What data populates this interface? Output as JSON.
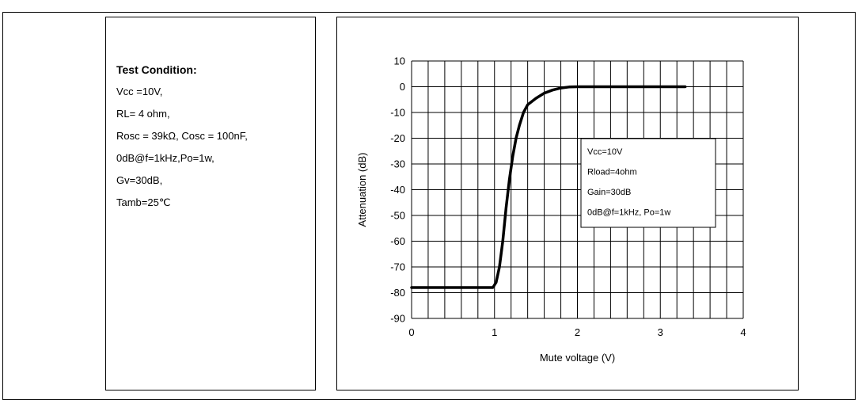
{
  "caption": "",
  "conditions": {
    "title": "Test Condition:",
    "lines": [
      "Vcc =10V,",
      "RL= 4 ohm,",
      "Rosc = 39kΩ, Cosc = 100nF,",
      "0dB@f=1kHz,Po=1w,",
      "Gv=30dB,",
      "Tamb=25℃"
    ]
  },
  "chart_data": {
    "type": "line",
    "title": "",
    "xlabel": "Mute voltage (V)",
    "ylabel": "Attenuation (dB)",
    "xlim": [
      0,
      4
    ],
    "ylim": [
      -90,
      10
    ],
    "x_ticks": [
      0,
      1,
      2,
      3,
      4
    ],
    "y_ticks": [
      10,
      0,
      -10,
      -20,
      -30,
      -40,
      -50,
      -60,
      -70,
      -80,
      -90
    ],
    "grid": true,
    "x": [
      0,
      0.5,
      0.98,
      1.02,
      1.06,
      1.1,
      1.14,
      1.18,
      1.22,
      1.26,
      1.3,
      1.35,
      1.4,
      1.5,
      1.6,
      1.7,
      1.8,
      1.9,
      2.0,
      2.5,
      3.0,
      3.3
    ],
    "y": [
      -78,
      -78,
      -78,
      -76,
      -70,
      -60,
      -47,
      -36,
      -27,
      -20,
      -15,
      -10,
      -7,
      -4.5,
      -2.5,
      -1.3,
      -0.5,
      -0.1,
      0,
      0,
      0,
      0
    ],
    "series_color": "#000000",
    "annotation": [
      "Vcc=10V",
      "Rload=4ohm",
      "Gain=30dB",
      "0dB@f=1kHz, Po=1w"
    ]
  }
}
